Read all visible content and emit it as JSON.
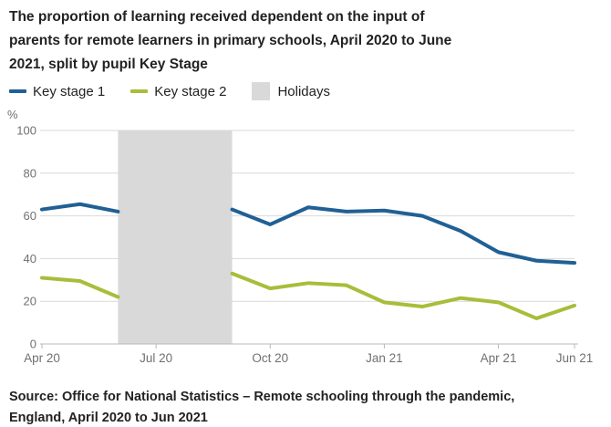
{
  "title": "The proportion of learning received dependent on the input of parents for remote learners in primary schools, April 2020 to June 2021, split by pupil Key Stage",
  "title_lines": [
    "The proportion of learning received dependent on the input of",
    "parents for remote learners in primary schools, April 2020 to June",
    "2021, split by pupil Key Stage"
  ],
  "legend": [
    {
      "label": "Key stage 1",
      "color": "#206095",
      "swatch": "line"
    },
    {
      "label": "Key stage 2",
      "color": "#a8bd3a",
      "swatch": "line"
    },
    {
      "label": "Holidays",
      "color": "#d9d9d9",
      "swatch": "box"
    }
  ],
  "chart_data": {
    "type": "line",
    "title": "The proportion of learning received dependent on the input of parents for remote learners in primary schools, April 2020 to June 2021, split by pupil Key Stage",
    "unit_label": "%",
    "xlabel": "",
    "ylabel": "%",
    "categories": [
      "Apr 20",
      "May 20",
      "Jun 20",
      "Jul 20",
      "Aug 20",
      "Sep 20",
      "Oct 20",
      "Nov 20",
      "Dec 20",
      "Jan 21",
      "Feb 21",
      "Mar 21",
      "Apr 21",
      "May 21",
      "Jun 21"
    ],
    "x_tick_labels": [
      "Apr 20",
      "Jul 20",
      "Oct 20",
      "Jan 21",
      "Apr 21",
      "Jun 21"
    ],
    "x_tick_indices": [
      0,
      3,
      6,
      9,
      12,
      14
    ],
    "ylim": [
      0,
      100
    ],
    "y_ticks": [
      0,
      20,
      40,
      60,
      80,
      100
    ],
    "grid": true,
    "legend_position": "top",
    "holiday_band": {
      "label": "Holidays",
      "from_category": "Jun 20",
      "to_category": "Sep 20",
      "from_index": 2,
      "to_index": 5,
      "color": "#d9d9d9"
    },
    "series": [
      {
        "name": "Key stage 1",
        "color": "#206095",
        "values": [
          63,
          65.5,
          62,
          null,
          null,
          63,
          56,
          64,
          62,
          62.5,
          60,
          53,
          43,
          39,
          38
        ]
      },
      {
        "name": "Key stage 2",
        "color": "#a8bd3a",
        "values": [
          31,
          29.5,
          22,
          null,
          null,
          33,
          26,
          28.5,
          27.5,
          19.5,
          17.5,
          21.5,
          19.5,
          12,
          18
        ]
      }
    ],
    "colors": {
      "grid": "#d9d9d9",
      "baseline": "#b9b9b9",
      "tick": "#b9b9b9",
      "axis_text": "#707071",
      "band": "#d9d9d9"
    }
  },
  "source_lines": [
    "Source: Office for National Statistics – Remote schooling through the pandemic,",
    "England, April 2020 to Jun 2021"
  ],
  "source": "Source: Office for National Statistics – Remote schooling through the pandemic, England, April 2020 to Jun 2021"
}
